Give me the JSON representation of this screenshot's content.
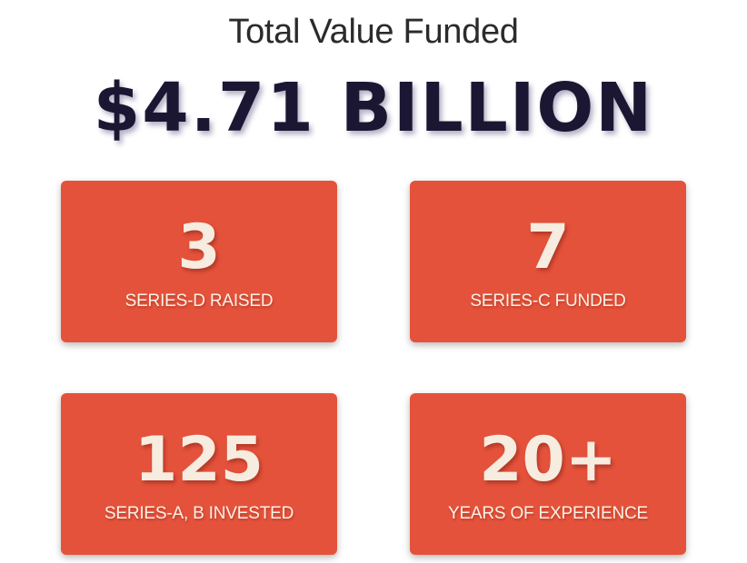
{
  "header": {
    "title": "Total Value Funded",
    "headline": "$4.71 BILLION"
  },
  "stats": [
    {
      "value": "3",
      "label": "SERIES-D RAISED"
    },
    {
      "value": "7",
      "label": "SERIES-C FUNDED"
    },
    {
      "value": "125",
      "label": "SERIES-A, B INVESTED"
    },
    {
      "value": "20+",
      "label": "YEARS OF EXPERIENCE"
    }
  ],
  "colors": {
    "card_background": "#e5523b",
    "headline": "#1b1733",
    "card_text": "#f6ecdf"
  }
}
